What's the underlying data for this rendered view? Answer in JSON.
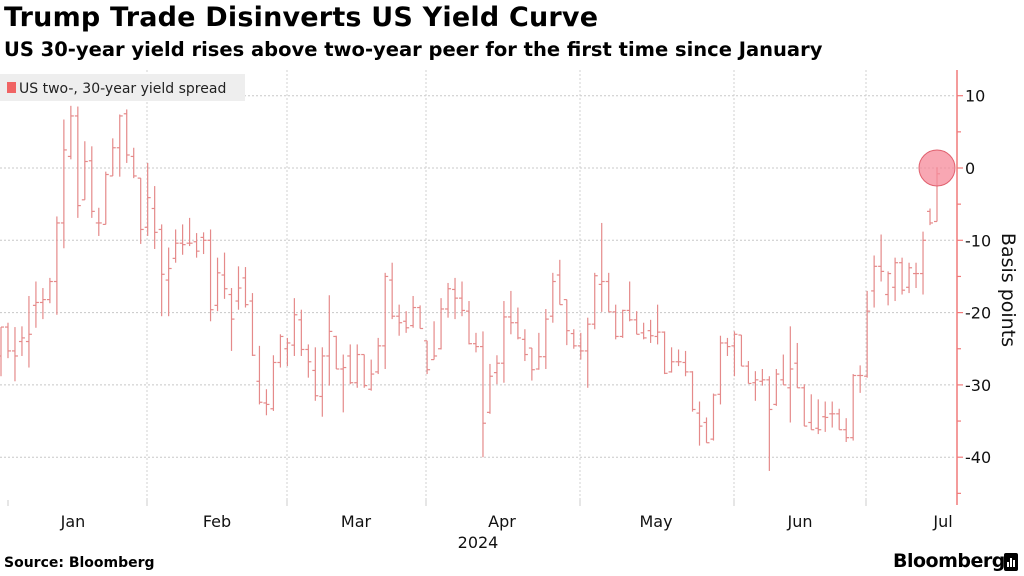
{
  "title": "Trump Trade Disinverts US Yield Curve",
  "subtitle": "US 30-year yield rises above two-year peer for the first time since January",
  "footer": {
    "source": "Source: Bloomberg",
    "brand": "Bloomberg"
  },
  "colors": {
    "series": "#e58a8a",
    "legend_swatch": "#f06464",
    "axis": "#f07a7a",
    "highlight_fill": "#f58a9a",
    "highlight_stroke": "#e0606e"
  },
  "chart_data": {
    "type": "ohlc",
    "title": "Trump Trade Disinverts US Yield Curve",
    "subtitle": "US 30-year yield rises above two-year peer for the first time since January",
    "legend": {
      "entries": [
        "US two-, 30-year yield spread"
      ],
      "placement": "top-left"
    },
    "series": [
      {
        "name": "US two-, 30-year yield spread",
        "fields": [
          "open",
          "high",
          "low",
          "close"
        ],
        "values": [
          [
            -26,
            -22,
            -28.8,
            -22
          ],
          [
            -22,
            -21.4,
            -26.3,
            -25.3
          ],
          [
            -25.3,
            -22,
            -29.5,
            -26
          ],
          [
            -24,
            -21.9,
            -26,
            -23.5
          ],
          [
            -24,
            -17.7,
            -27.6,
            -23
          ],
          [
            -19,
            -15.7,
            -22.1,
            -18.6
          ],
          [
            -18.6,
            -16.6,
            -20.9,
            -18.2
          ],
          [
            -18.2,
            -15.2,
            -18.7,
            -15.7
          ],
          [
            -15.7,
            -6.7,
            -20.3,
            -7.6
          ],
          [
            -7.6,
            6.7,
            -11.1,
            2.5
          ],
          [
            1.6,
            8.6,
            1.2,
            7.2
          ],
          [
            7.2,
            8.5,
            -6.9,
            -5.2
          ],
          [
            -4.4,
            3.7,
            -4.4,
            0.9
          ],
          [
            1,
            3,
            -6.9,
            -6
          ],
          [
            -7.6,
            -5.5,
            -9.4,
            -7.6
          ],
          [
            -7.8,
            -0.5,
            -7.8,
            -0.9
          ],
          [
            -1.1,
            4.1,
            -1.1,
            2.8
          ],
          [
            2.8,
            7.4,
            -1.2,
            7.2
          ],
          [
            7.5,
            8.1,
            0.7,
            1.8
          ],
          [
            1.6,
            2.8,
            -1.4,
            -1.1
          ],
          [
            -1.4,
            -1.4,
            -10.5,
            -8.5
          ],
          [
            -8.2,
            0.7,
            -9.4,
            -4.1
          ],
          [
            -5.6,
            -2.5,
            -11.2,
            -8.9
          ],
          [
            -8.5,
            -7.8,
            -20.5,
            -14.7
          ],
          [
            -15.5,
            -11,
            -20.5,
            -13.9
          ],
          [
            -12.5,
            -8.5,
            -13.1,
            -10.4
          ],
          [
            -10.4,
            -7.8,
            -12,
            -10.6
          ],
          [
            -10.4,
            -6.9,
            -10.8,
            -10.4
          ],
          [
            -10.2,
            -9,
            -12.4,
            -11.5
          ],
          [
            -9.6,
            -8.9,
            -11.9,
            -10
          ],
          [
            -10,
            -8.5,
            -21.2,
            -19.6
          ],
          [
            -19,
            -12.4,
            -19.8,
            -14.5
          ],
          [
            -14.8,
            -11.7,
            -18.1,
            -16.7
          ],
          [
            -17.5,
            -16.6,
            -25.3,
            -20.9
          ],
          [
            -18.4,
            -13.6,
            -19.6,
            -16.6
          ],
          [
            -15.2,
            -13.7,
            -19.3,
            -18.9
          ],
          [
            -18.4,
            -17.3,
            -26,
            -25.9
          ],
          [
            -29.5,
            -24.6,
            -32.7,
            -32.4
          ],
          [
            -32.5,
            -30.6,
            -34.2,
            -32.7
          ],
          [
            -33.3,
            -25.9,
            -33.6,
            -26.9
          ],
          [
            -26.9,
            -23,
            -27.6,
            -23.3
          ],
          [
            -25,
            -23.5,
            -27.4,
            -24.2
          ],
          [
            -24.5,
            -18,
            -26,
            -20.3
          ],
          [
            -21,
            -19.6,
            -26,
            -25.1
          ],
          [
            -25.1,
            -24.4,
            -29,
            -26.8
          ],
          [
            -28,
            -24.8,
            -32.2,
            -31.5
          ],
          [
            -31.6,
            -24.8,
            -34.4,
            -26
          ],
          [
            -26,
            -17.6,
            -30.1,
            -22.6
          ],
          [
            -23.3,
            -23.2,
            -27.8,
            -27.8
          ],
          [
            -27.8,
            -25.8,
            -33.8,
            -27.6
          ],
          [
            -26,
            -24.4,
            -29.9,
            -29.7
          ],
          [
            -29.7,
            -24.4,
            -30.4,
            -25.8
          ],
          [
            -25.8,
            -25.8,
            -30.4,
            -30.1
          ],
          [
            -30.6,
            -26.5,
            -30.8,
            -28.5
          ],
          [
            -28.2,
            -23.5,
            -28.5,
            -24.6
          ],
          [
            -24.6,
            -14.5,
            -27.8,
            -15
          ],
          [
            -15.5,
            -13.1,
            -20.9,
            -20.5
          ],
          [
            -20.5,
            -18.9,
            -23.2,
            -21.4
          ],
          [
            -21.2,
            -19.8,
            -22.8,
            -22.1
          ],
          [
            -21.8,
            -17.7,
            -22.1,
            -19.3
          ],
          [
            -19.3,
            -19,
            -22.2,
            -22.2
          ],
          [
            -23.9,
            -23.9,
            -28.5,
            -27.9
          ],
          [
            -26.5,
            -21.2,
            -26.5,
            -26
          ],
          [
            -25,
            -18,
            -25.1,
            -19.5
          ],
          [
            -19.5,
            -15.9,
            -20.7,
            -16.7
          ],
          [
            -16.8,
            -15.2,
            -20.9,
            -18
          ],
          [
            -18,
            -15.7,
            -20.5,
            -19.7
          ],
          [
            -19.8,
            -18.4,
            -24.4,
            -24.3
          ],
          [
            -24.3,
            -22.8,
            -25.5,
            -24.7
          ],
          [
            -24.7,
            -22.6,
            -40,
            -35.3
          ],
          [
            -33.8,
            -27.1,
            -34,
            -28.8
          ],
          [
            -28.3,
            -25.9,
            -29.9,
            -27
          ],
          [
            -27,
            -18.4,
            -29.7,
            -20.6
          ],
          [
            -20.6,
            -17,
            -23,
            -21.4
          ],
          [
            -21.4,
            -19.3,
            -23.7,
            -23.5
          ],
          [
            -23.7,
            -22.3,
            -26.7,
            -25.8
          ],
          [
            -24.9,
            -24.9,
            -29.4,
            -27.9
          ],
          [
            -27.8,
            -22.8,
            -27.9,
            -26.1
          ],
          [
            -26.1,
            -19.5,
            -27.8,
            -20.9
          ],
          [
            -20.5,
            -14.5,
            -21.4,
            -15.7
          ],
          [
            -14.8,
            -12.7,
            -18.9,
            -18.9
          ],
          [
            -18.2,
            -18.2,
            -24.5,
            -22.5
          ],
          [
            -22.9,
            -22.3,
            -25,
            -24.6
          ],
          [
            -24.6,
            -22.8,
            -26.5,
            -25.3
          ],
          [
            -25.3,
            -20.7,
            -30.4,
            -21.6
          ],
          [
            -21.6,
            -14.5,
            -22.3,
            -14.9
          ],
          [
            -16.1,
            -7.6,
            -19.9,
            -15.7
          ],
          [
            -15.7,
            -14.5,
            -19.9,
            -19.9
          ],
          [
            -19.9,
            -18.9,
            -23.7,
            -23.3
          ],
          [
            -23.3,
            -19.6,
            -23.5,
            -19.7
          ],
          [
            -19.7,
            -15.7,
            -21.2,
            -21
          ],
          [
            -21,
            -19.8,
            -23,
            -23
          ],
          [
            -22.8,
            -21.4,
            -23.7,
            -23.5
          ],
          [
            -22.5,
            -21,
            -24.2,
            -23.2
          ],
          [
            -23.3,
            -18.9,
            -24.4,
            -22.7
          ],
          [
            -22.7,
            -22.6,
            -28.5,
            -28.4
          ],
          [
            -28.2,
            -24.8,
            -28.3,
            -26.8
          ],
          [
            -26.8,
            -25.1,
            -27.4,
            -26.8
          ],
          [
            -26.9,
            -25.3,
            -28.8,
            -28.2
          ],
          [
            -28.2,
            -28.1,
            -33.7,
            -33.4
          ],
          [
            -33.9,
            -32.3,
            -38.4,
            -35.7
          ],
          [
            -35.2,
            -34.5,
            -38,
            -38
          ],
          [
            -37.5,
            -31.2,
            -37.7,
            -31.4
          ],
          [
            -31.3,
            -23.2,
            -32.7,
            -24.2
          ],
          [
            -24.2,
            -23.5,
            -26,
            -24.7
          ],
          [
            -24.6,
            -22.6,
            -28.8,
            -23
          ],
          [
            -23.1,
            -23.1,
            -27.4,
            -27.4
          ],
          [
            -27.4,
            -26.7,
            -29.8,
            -29.8
          ],
          [
            -29.7,
            -28.1,
            -32.2,
            -29.3
          ],
          [
            -29.5,
            -27.8,
            -30.1,
            -29.3
          ],
          [
            -29.3,
            -28.8,
            -41.9,
            -33.4
          ],
          [
            -32.7,
            -27.8,
            -32.9,
            -28.5
          ],
          [
            -29.3,
            -25.8,
            -30,
            -30
          ],
          [
            -30.4,
            -21.9,
            -35.2,
            -27.8
          ],
          [
            -27,
            -24.2,
            -30.4,
            -30.4
          ],
          [
            -30.4,
            -29.9,
            -35.7,
            -35.7
          ],
          [
            -35.2,
            -31.3,
            -36.2,
            -36.2
          ],
          [
            -36,
            -32,
            -36.8,
            -36.2
          ],
          [
            -34.4,
            -32.3,
            -36.5,
            -34.5
          ],
          [
            -34,
            -32.3,
            -35.9,
            -34
          ],
          [
            -34,
            -33.3,
            -36.2,
            -36.2
          ],
          [
            -36.2,
            -34.6,
            -37.9,
            -37.3
          ],
          [
            -37.3,
            -28.5,
            -37.7,
            -28.7
          ],
          [
            -28.7,
            -27.3,
            -31.1,
            -28.7
          ],
          [
            -28.8,
            -17,
            -29,
            -19.8
          ],
          [
            -17,
            -12.1,
            -19.3,
            -13.6
          ],
          [
            -13.6,
            -9.2,
            -15.7,
            -14.3
          ],
          [
            -17.5,
            -14.3,
            -19,
            -14.6
          ],
          [
            -16.5,
            -12.4,
            -18.4,
            -13.1
          ],
          [
            -13.1,
            -12.4,
            -17.5,
            -16.9
          ],
          [
            -16.5,
            -13.1,
            -17.3,
            -13.8
          ],
          [
            -14.6,
            -13.1,
            -16.6,
            -14.6
          ],
          [
            -14.6,
            -8.8,
            -17.5,
            -10
          ],
          [
            -6,
            -5.6,
            -7.9,
            -7.6
          ],
          [
            -7.4,
            0.1,
            -7.4,
            -0.8
          ]
        ]
      }
    ],
    "x_tick_labels": [
      "Jan",
      "Feb",
      "Mar",
      "Apr",
      "May",
      "Jun",
      "Jul"
    ],
    "x_year_label": "2024",
    "ylabel": "Basis points",
    "y_ticks": [
      10,
      0,
      -10,
      -20,
      -30,
      -40
    ],
    "ylim": [
      -46,
      13.5
    ],
    "y_axis_side": "right",
    "grid": true,
    "highlight": {
      "shape": "circle",
      "at": "last",
      "value": 0
    }
  }
}
